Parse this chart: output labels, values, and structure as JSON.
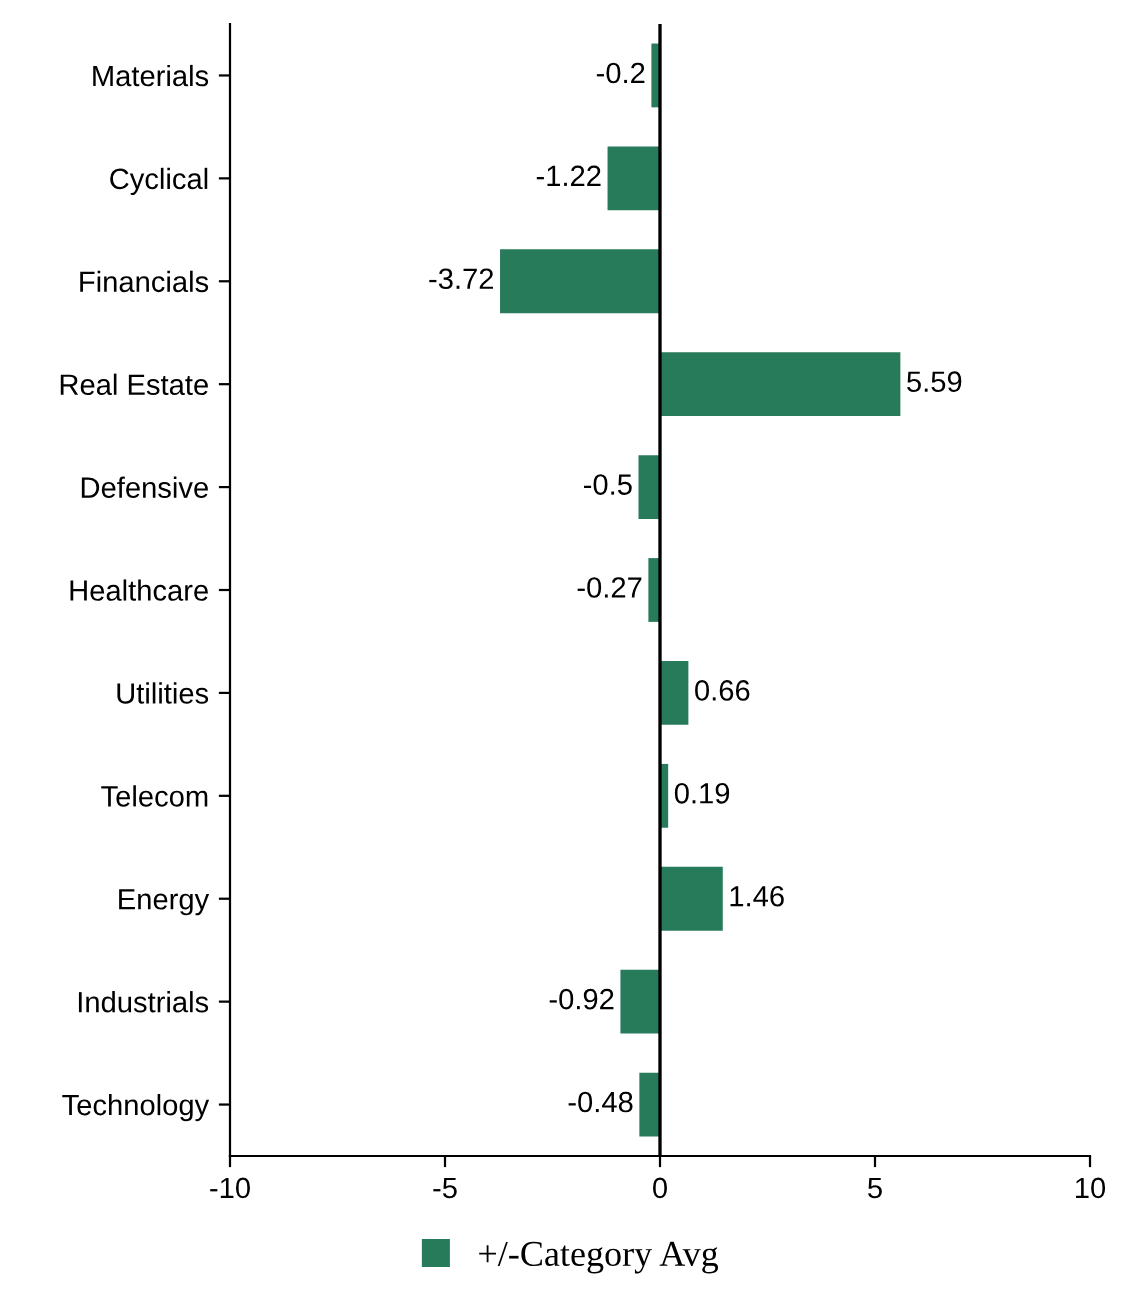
{
  "chart_data": {
    "type": "bar",
    "orientation": "horizontal",
    "categories": [
      "Materials",
      "Cyclical",
      "Financials",
      "Real Estate",
      "Defensive",
      "Healthcare",
      "Utilities",
      "Telecom",
      "Energy",
      "Industrials",
      "Technology"
    ],
    "series": [
      {
        "name": "+/-Category Avg",
        "color": "#277a5a",
        "values": [
          -0.2,
          -1.22,
          -3.72,
          5.59,
          -0.5,
          -0.27,
          0.66,
          0.19,
          1.46,
          -0.92,
          -0.48
        ]
      }
    ],
    "xlim": [
      -10,
      10
    ],
    "xticks": [
      -10,
      -5,
      0,
      5,
      10
    ],
    "ref_lines": [
      {
        "axis": "x",
        "value": 0,
        "color": "#000000"
      }
    ],
    "data_labels": true,
    "legend": "bottom",
    "grid": false
  }
}
